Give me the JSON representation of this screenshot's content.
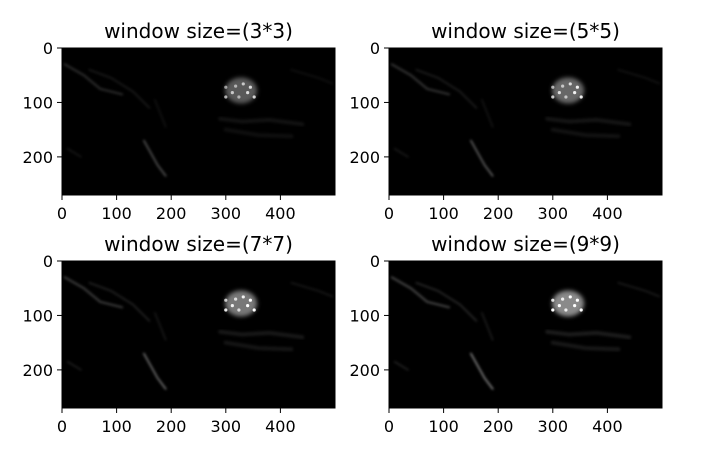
{
  "chart_data": [
    {
      "type": "heatmap",
      "title": "window size=(3*3)",
      "xticks": [
        0,
        100,
        200,
        300,
        400
      ],
      "yticks": [
        0,
        100,
        200
      ],
      "xlim": [
        0,
        500
      ],
      "ylim": [
        270,
        0
      ],
      "colormap": "gray",
      "features": "blob",
      "intensity": 1.0
    },
    {
      "type": "heatmap",
      "title": "window size=(5*5)",
      "xticks": [
        0,
        100,
        200,
        300,
        400
      ],
      "yticks": [
        0,
        100,
        200
      ],
      "xlim": [
        0,
        500
      ],
      "ylim": [
        270,
        0
      ],
      "colormap": "gray",
      "features": "blob",
      "intensity": 1.15
    },
    {
      "type": "heatmap",
      "title": "window size=(7*7)",
      "xticks": [
        0,
        100,
        200,
        300,
        400
      ],
      "yticks": [
        0,
        100,
        200
      ],
      "xlim": [
        0,
        500
      ],
      "ylim": [
        270,
        0
      ],
      "colormap": "gray",
      "features": "blob",
      "intensity": 1.35
    },
    {
      "type": "heatmap",
      "title": "window size=(9*9)",
      "xticks": [
        0,
        100,
        200,
        300,
        400
      ],
      "yticks": [
        0,
        100,
        200
      ],
      "xlim": [
        0,
        500
      ],
      "ylim": [
        270,
        0
      ],
      "colormap": "gray",
      "features": "blob",
      "intensity": 1.55
    }
  ],
  "colors": {
    "background": "#ffffff",
    "image_background": "#000000",
    "feature": "#ffffff"
  }
}
